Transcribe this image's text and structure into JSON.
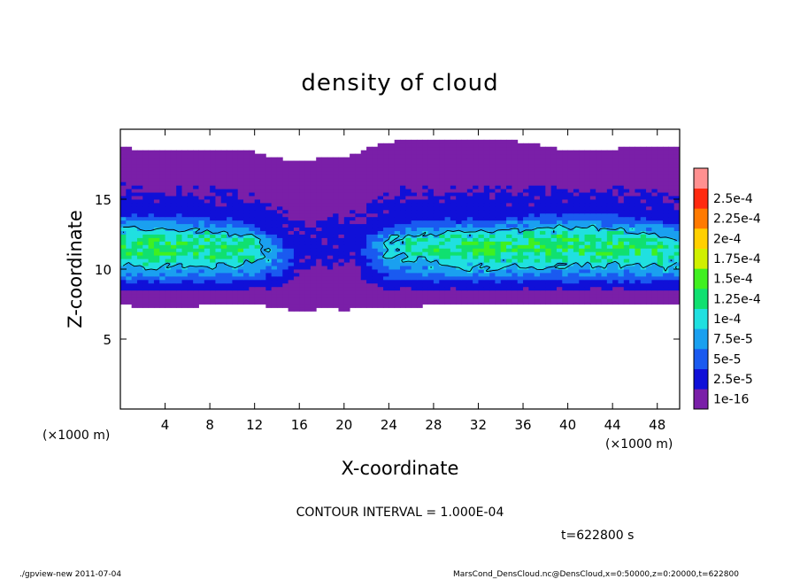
{
  "chart_data": {
    "type": "heatmap",
    "title": "density of cloud",
    "xlabel": "X-coordinate",
    "ylabel": "Z-coordinate",
    "x_unit": "(×1000 m)",
    "xlim": [
      0,
      50
    ],
    "ylim": [
      0,
      20
    ],
    "xticks": [
      4,
      8,
      12,
      16,
      20,
      24,
      28,
      32,
      36,
      40,
      44,
      48
    ],
    "yticks": [
      5,
      10,
      15
    ],
    "contour_interval_label": "CONTOUR INTERVAL = 1.000E-04",
    "contour_level": 0.0001,
    "time_label": "t=622800 s",
    "colorbar": {
      "levels": [
        "1e-16",
        "2.5e-5",
        "5e-5",
        "7.5e-5",
        "1e-4",
        "1.25e-4",
        "1.5e-4",
        "1.75e-4",
        "2e-4",
        "2.25e-4",
        "2.5e-4"
      ],
      "colors": [
        "#7a1fa8",
        "#1010d8",
        "#1a5af0",
        "#1aa0f0",
        "#20e0e0",
        "#10e070",
        "#40f020",
        "#d0f000",
        "#ffd000",
        "#ff7a00",
        "#ff2a10",
        "#ff9090"
      ]
    },
    "cloud_profile": {
      "x": [
        0,
        4,
        8,
        12,
        14,
        16,
        18,
        20,
        22,
        24,
        28,
        32,
        36,
        40,
        44,
        48,
        50
      ],
      "top_z": [
        18.7,
        18.4,
        18.6,
        18.4,
        17.9,
        17.8,
        17.9,
        17.9,
        18.6,
        19.1,
        19.3,
        19.3,
        19.1,
        18.5,
        18.6,
        18.8,
        18.8
      ],
      "bottom_z": [
        7.4,
        7.3,
        7.4,
        7.5,
        7.3,
        7.0,
        7.2,
        7.1,
        7.3,
        7.3,
        7.4,
        7.4,
        7.5,
        7.4,
        7.5,
        7.4,
        7.4
      ],
      "high_band_low_z": [
        9.8,
        10.1,
        10.1,
        10.2,
        10.6,
        11.0,
        11.7,
        11.9,
        11.2,
        10.6,
        10.3,
        10.1,
        10.1,
        10.2,
        10.2,
        10.1,
        10.2
      ],
      "high_band_high_z": [
        13.4,
        13.3,
        13.2,
        12.9,
        12.2,
        11.4,
        11.3,
        11.5,
        12.3,
        12.9,
        13.1,
        13.1,
        13.3,
        13.4,
        13.3,
        13.0,
        12.8
      ],
      "peak_value": 0.00014,
      "upper_layer_value": 3e-05
    },
    "grid": false,
    "legend_position": "right"
  },
  "footer": {
    "left": "./gpview-new   2011-07-04",
    "right": "MarsCond_DensCloud.nc@DensCloud,x=0:50000,z=0:20000,t=622800"
  }
}
